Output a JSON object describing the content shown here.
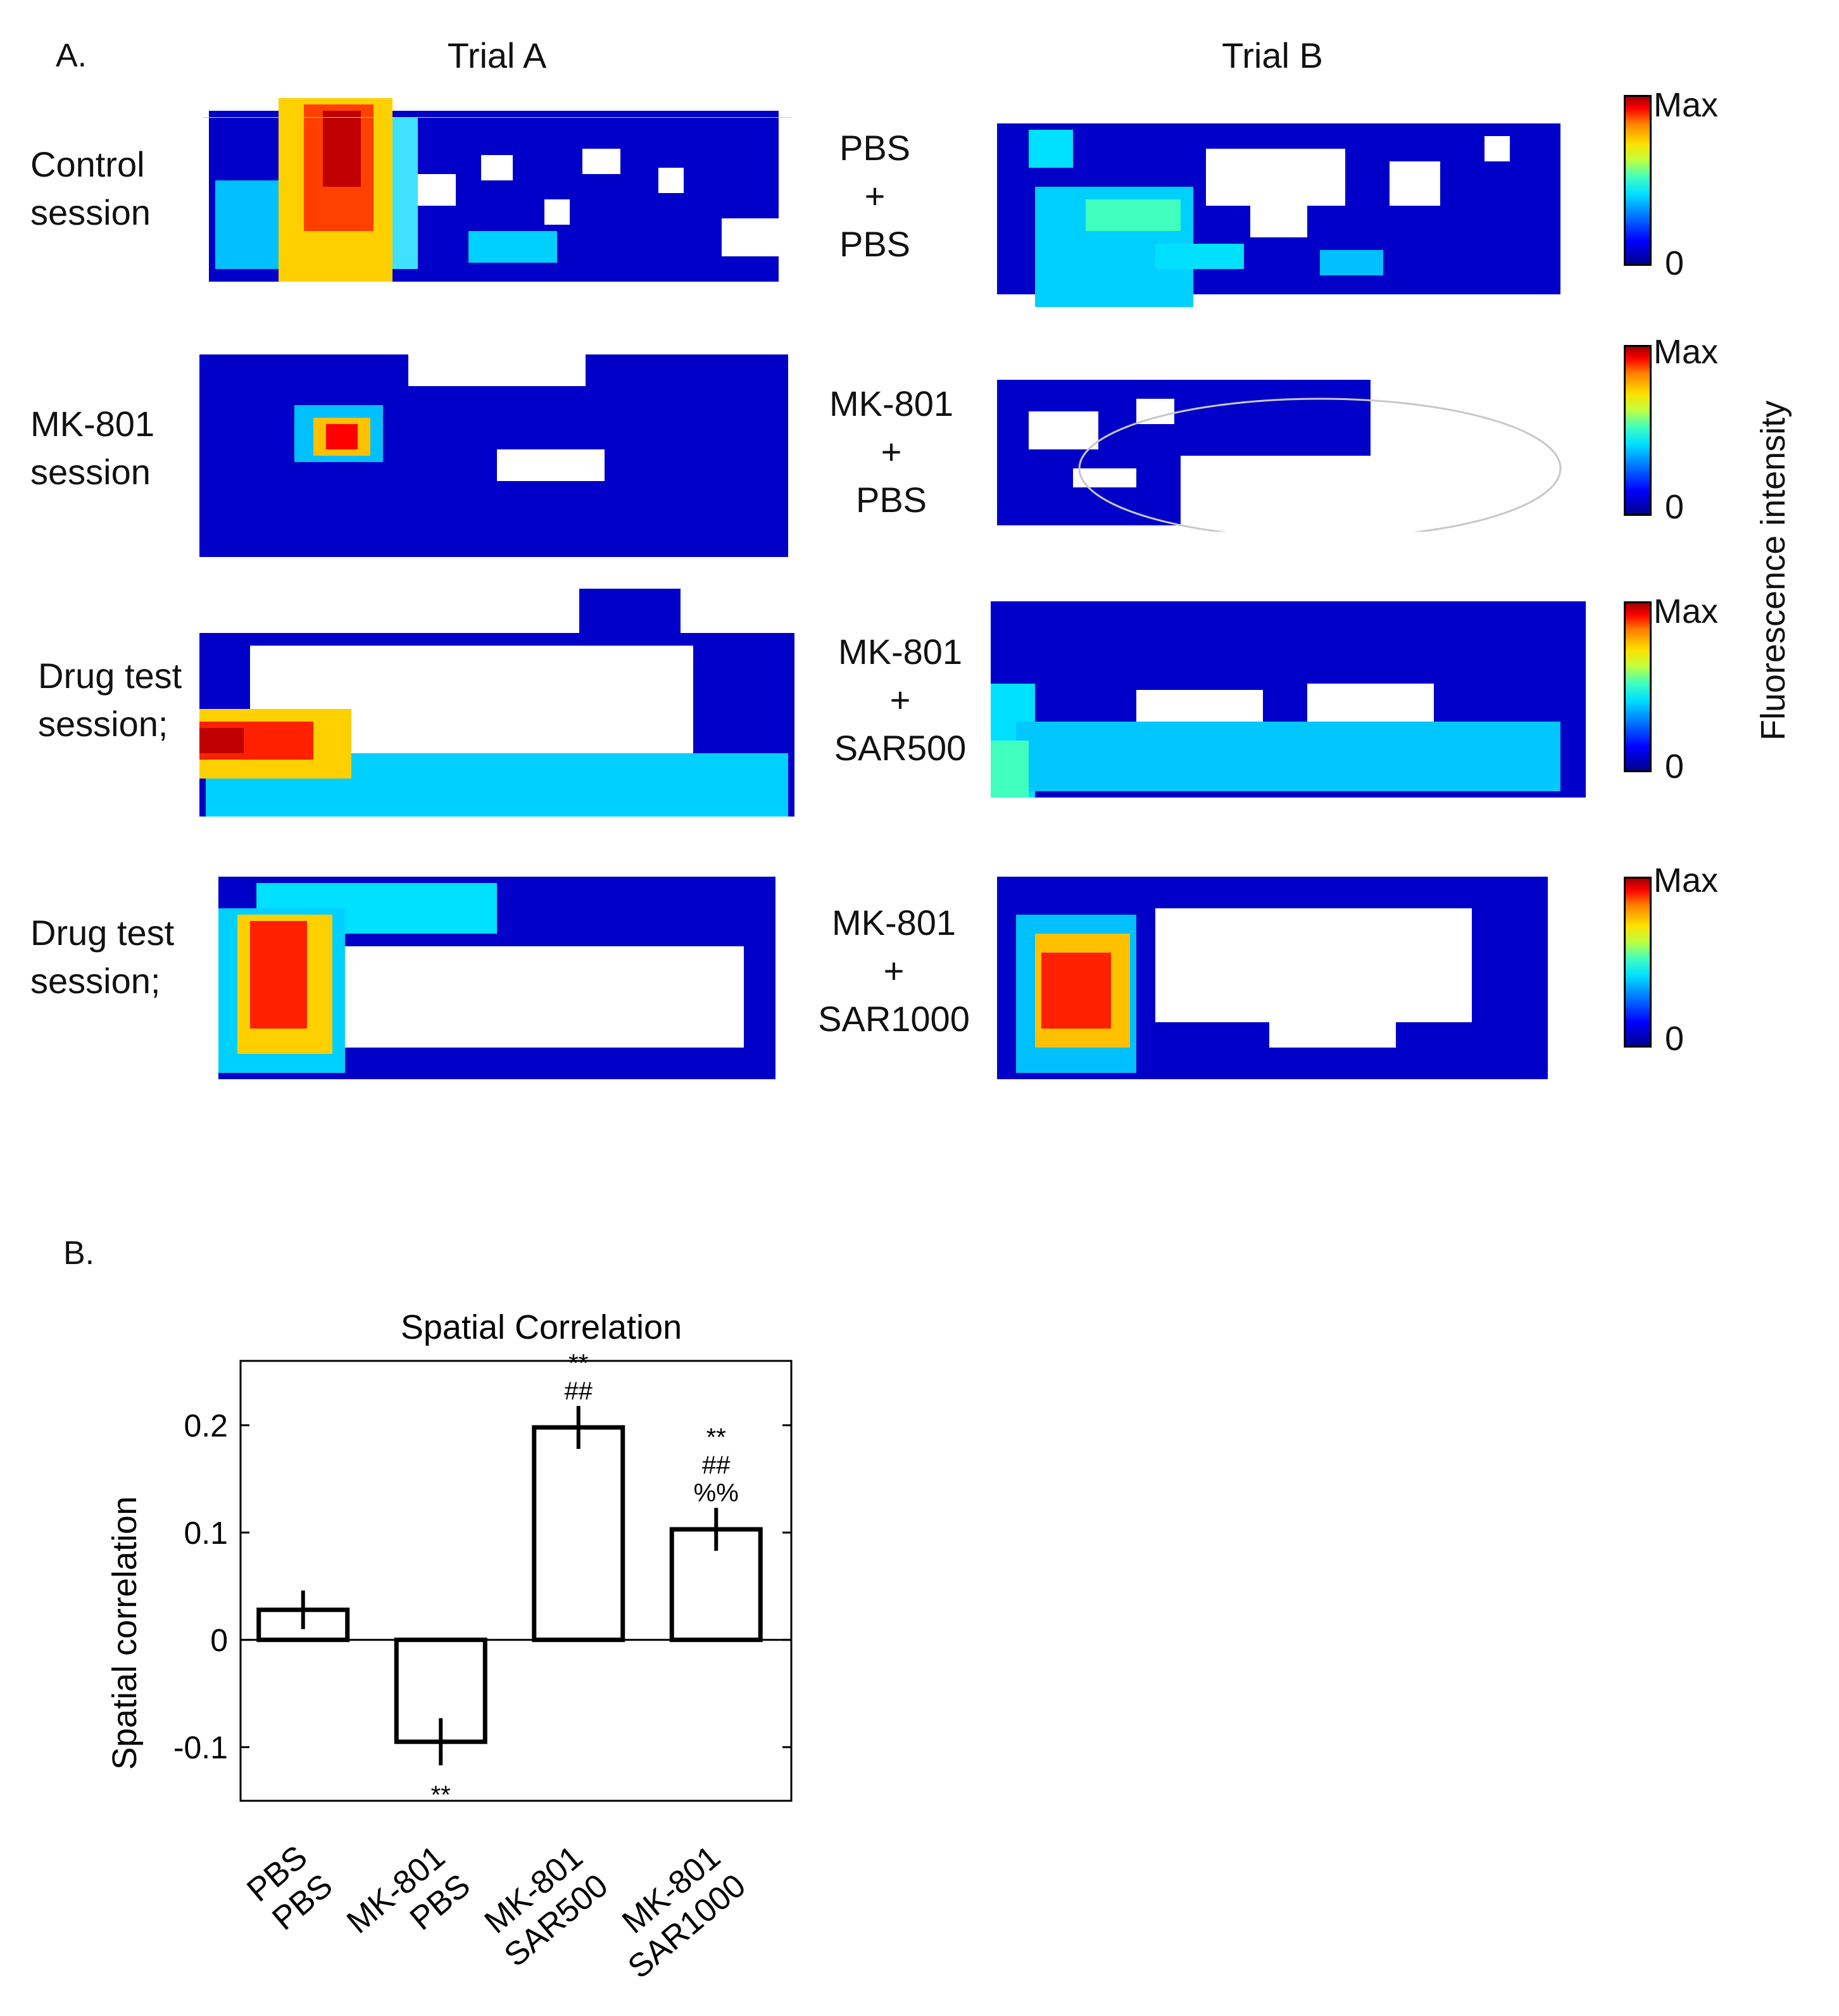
{
  "panelA": {
    "label": "A.",
    "trial_a_title": "Trial A",
    "trial_b_title": "Trial B",
    "rows": [
      {
        "session_lines": [
          "Control",
          "session"
        ],
        "treatment_lines": [
          "PBS",
          "+",
          "PBS"
        ]
      },
      {
        "session_lines": [
          "MK-801",
          "session"
        ],
        "treatment_lines": [
          "MK-801",
          "+",
          "PBS"
        ]
      },
      {
        "session_lines": [
          "Drug test",
          "session;"
        ],
        "treatment_lines": [
          "MK-801",
          "+",
          "SAR500"
        ]
      },
      {
        "session_lines": [
          "Drug test",
          "session;"
        ],
        "treatment_lines": [
          "MK-801",
          "+",
          "SAR1000"
        ]
      }
    ],
    "colorbar": {
      "max_label": "Max",
      "min_label": "0",
      "axis_label": "Fluorescence intensity"
    },
    "colors": {
      "cold": "#0000c8",
      "hot": "#ff0000",
      "trajectory": "#c8c8c8"
    }
  },
  "panelB": {
    "label": "B."
  },
  "chart_data": {
    "type": "bar",
    "title": "Spatial Correlation",
    "ylabel": "Spatial correlation",
    "xlabel": "",
    "ylim": [
      -0.15,
      0.26
    ],
    "yticks": [
      -0.1,
      0,
      0.1,
      0.2
    ],
    "ytick_labels": [
      "-0.1",
      "0",
      "0.1",
      "0.2"
    ],
    "categories": [
      [
        "PBS",
        "PBS"
      ],
      [
        "MK-801",
        "PBS"
      ],
      [
        "MK-801",
        "SAR500"
      ],
      [
        "MK-801",
        "SAR1000"
      ]
    ],
    "values": [
      0.028,
      -0.095,
      0.198,
      0.103
    ],
    "errors": [
      0.018,
      0.022,
      0.02,
      0.02
    ],
    "annotations": [
      [],
      [
        "**"
      ],
      [
        "**",
        "##"
      ],
      [
        "**",
        "##",
        "%%"
      ]
    ],
    "bar_fill": "#ffffff",
    "bar_edge": "#000000"
  }
}
